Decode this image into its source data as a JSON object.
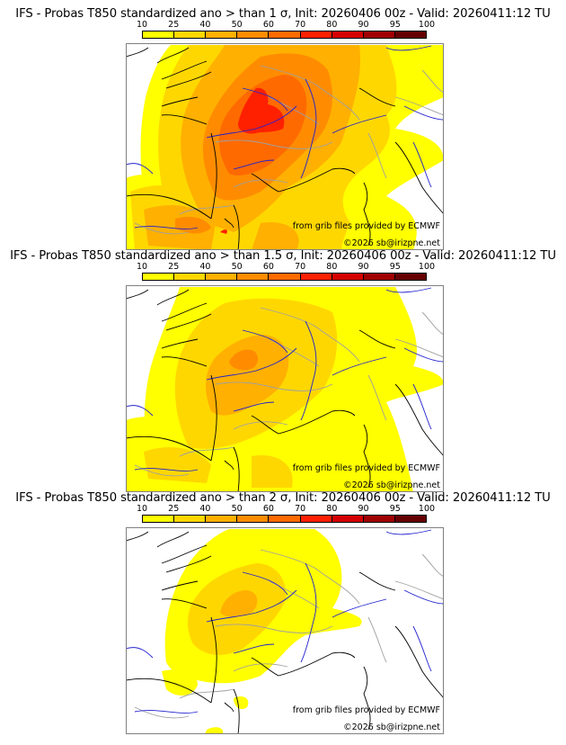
{
  "panels": [
    {
      "title": "IFS - Probas T850  standardized ano > than 1 σ, Init: 20260406 00z - Valid: 20260411:12 TU",
      "threshold": "1 σ",
      "intensity": 1.0
    },
    {
      "title": "IFS - Probas T850  standardized ano > than 1.5 σ, Init: 20260406 00z - Valid: 20260411:12 TU",
      "threshold": "1.5 σ",
      "intensity": 0.6
    },
    {
      "title": "IFS - Probas T850  standardized ano > than 2 σ, Init: 20260406 00z - Valid: 20260411:12 TU",
      "threshold": "2 σ",
      "intensity": 0.35
    }
  ],
  "colorbar": {
    "ticks": [
      "10",
      "25",
      "40",
      "50",
      "60",
      "70",
      "80",
      "90",
      "95",
      "100"
    ],
    "colors": [
      "#ffff00",
      "#ffd700",
      "#ffb000",
      "#ff8c00",
      "#ff6a00",
      "#ff2000",
      "#d40000",
      "#a00000",
      "#660000"
    ]
  },
  "credits": {
    "source": "from grib files provided by ECMWF",
    "copyright": "©2026 sb@irizpne.net"
  },
  "colors": {
    "coast": "#000000",
    "rivers": "#2020d0",
    "borders": "#a0a0a0"
  },
  "chart_data": [
    {
      "type": "heatmap",
      "title": "IFS - Probas T850  standardized ano > than 1 σ, Init: 20260406 00z - Valid: 20260411:12 TU",
      "legend": {
        "ticks": [
          10,
          25,
          40,
          50,
          60,
          70,
          80,
          90,
          95,
          100
        ],
        "units": "%"
      },
      "region": "Western Europe (France centred)",
      "max_probability_band": "70-80 (central France)"
    },
    {
      "type": "heatmap",
      "title": "IFS - Probas T850  standardized ano > than 1.5 σ, Init: 20260406 00z - Valid: 20260411:12 TU",
      "legend": {
        "ticks": [
          10,
          25,
          40,
          50,
          60,
          70,
          80,
          90,
          95,
          100
        ],
        "units": "%"
      },
      "region": "Western Europe (France centred)",
      "max_probability_band": "50-60 (central France)"
    },
    {
      "type": "heatmap",
      "title": "IFS - Probas T850  standardized ano > than 2 σ, Init: 20260406 00z - Valid: 20260411:12 TU",
      "legend": {
        "ticks": [
          10,
          25,
          40,
          50,
          60,
          70,
          80,
          90,
          95,
          100
        ],
        "units": "%"
      },
      "region": "Western Europe (France centred)",
      "max_probability_band": "40-50 (central France)"
    }
  ]
}
